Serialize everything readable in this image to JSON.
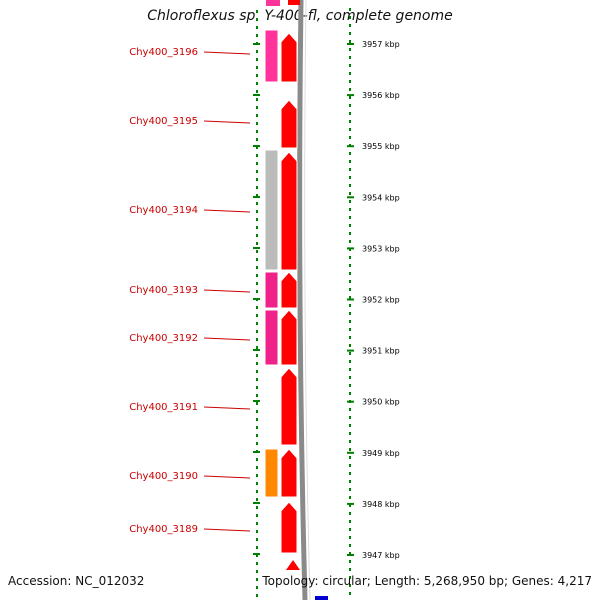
{
  "title": "Chloroflexus sp. Y-400-fl, complete genome",
  "accession": "Accession: NC_012032",
  "summary": "Topology: circular; Length: 5,268,950 bp; Genes: 4,217",
  "colors": {
    "gene_arrow": "#ff0000",
    "backbone": "#8a8a8a",
    "tick": "#008000",
    "label": "#cc0000",
    "cog_magenta": "#ff3399",
    "cog_pink": "#ee2288",
    "cog_gray": "#bbbbbb",
    "cog_orange": "#ff8800",
    "edge_blue": "#0000cc"
  },
  "ticks": [
    {
      "label": "3957 kbp"
    },
    {
      "label": "3956 kbp"
    },
    {
      "label": "3955 kbp"
    },
    {
      "label": "3954 kbp"
    },
    {
      "label": "3953 kbp"
    },
    {
      "label": "3952 kbp"
    },
    {
      "label": "3951 kbp"
    },
    {
      "label": "3950 kbp"
    },
    {
      "label": "3949 kbp"
    },
    {
      "label": "3948 kbp"
    },
    {
      "label": "3947 kbp"
    }
  ],
  "genes": [
    {
      "label": "Chy400_3196",
      "cog_color": "#ff3399"
    },
    {
      "label": "Chy400_3195",
      "cog_color": ""
    },
    {
      "label": "Chy400_3194",
      "cog_color": "#bbbbbb"
    },
    {
      "label": "Chy400_3193",
      "cog_color": "#ee2288"
    },
    {
      "label": "Chy400_3192",
      "cog_color": "#ee2288"
    },
    {
      "label": "Chy400_3191",
      "cog_color": ""
    },
    {
      "label": "Chy400_3190",
      "cog_color": "#ff8800"
    },
    {
      "label": "Chy400_3189",
      "cog_color": ""
    }
  ]
}
